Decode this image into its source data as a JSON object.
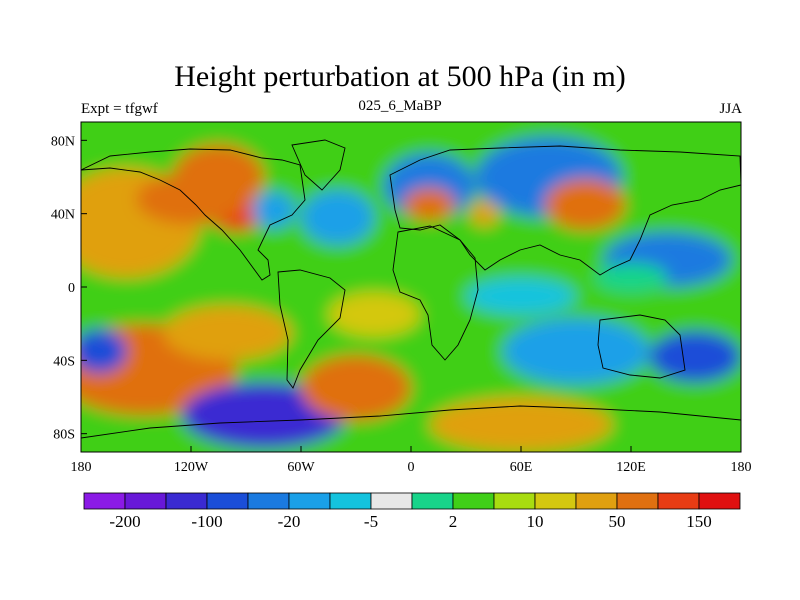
{
  "chart_data": {
    "type": "heatmap",
    "title": "Height perturbation at 500 hPa (in m)",
    "left_string": "Expt = tfgwf",
    "center_string": "025_6_MaBP",
    "right_string": "JJA",
    "x_range": [
      -180,
      180
    ],
    "y_range": [
      -90,
      90
    ],
    "x_ticks": [
      {
        "value": -180,
        "label": "180"
      },
      {
        "value": -120,
        "label": "120W"
      },
      {
        "value": -60,
        "label": "60W"
      },
      {
        "value": 0,
        "label": "0"
      },
      {
        "value": 60,
        "label": "60E"
      },
      {
        "value": 120,
        "label": "120E"
      },
      {
        "value": 180,
        "label": "180"
      }
    ],
    "y_ticks": [
      {
        "value": 80,
        "label": "80N"
      },
      {
        "value": 40,
        "label": "40N"
      },
      {
        "value": 0,
        "label": "0"
      },
      {
        "value": -40,
        "label": "40S"
      },
      {
        "value": -80,
        "label": "80S"
      }
    ],
    "colorbar": {
      "colors": [
        "#8b1ae6",
        "#6818d8",
        "#3a2ad2",
        "#1a4ed8",
        "#1a7ae0",
        "#1aa0e8",
        "#14c3de",
        "#e8e8e8",
        "#18d48a",
        "#40cf18",
        "#a8dc10",
        "#d4c810",
        "#e0a010",
        "#e07010",
        "#e83c14",
        "#e01010"
      ],
      "labels": [
        {
          "index": 1,
          "text": "-200"
        },
        {
          "index": 3,
          "text": "-100"
        },
        {
          "index": 5,
          "text": "-20"
        },
        {
          "index": 7,
          "text": "-5"
        },
        {
          "index": 9,
          "text": "2"
        },
        {
          "index": 11,
          "text": "10"
        },
        {
          "index": 13,
          "text": "50"
        },
        {
          "index": 15,
          "text": "150"
        }
      ]
    },
    "field_features": [
      {
        "lon": -155,
        "lat": 35,
        "value": 25,
        "rx": 40,
        "ry": 30
      },
      {
        "lon": -145,
        "lat": -45,
        "value": 60,
        "rx": 50,
        "ry": 25
      },
      {
        "lon": -100,
        "lat": -25,
        "value": 40,
        "rx": 35,
        "ry": 15
      },
      {
        "lon": -105,
        "lat": 60,
        "value": 70,
        "rx": 25,
        "ry": 18
      },
      {
        "lon": -95,
        "lat": 40,
        "value": 110,
        "rx": 15,
        "ry": 10
      },
      {
        "lon": -120,
        "lat": 48,
        "value": 50,
        "rx": 30,
        "ry": 14
      },
      {
        "lon": -75,
        "lat": 42,
        "value": -12,
        "rx": 12,
        "ry": 10
      },
      {
        "lon": -40,
        "lat": 38,
        "value": -20,
        "rx": 20,
        "ry": 15
      },
      {
        "lon": 10,
        "lat": 55,
        "value": -25,
        "rx": 25,
        "ry": 18
      },
      {
        "lon": 75,
        "lat": 60,
        "value": -40,
        "rx": 40,
        "ry": 22
      },
      {
        "lon": 10,
        "lat": 45,
        "value": 60,
        "rx": 14,
        "ry": 9
      },
      {
        "lon": 40,
        "lat": 40,
        "value": 40,
        "rx": 8,
        "ry": 7
      },
      {
        "lon": 95,
        "lat": 45,
        "value": 50,
        "rx": 22,
        "ry": 14
      },
      {
        "lon": 140,
        "lat": 15,
        "value": -25,
        "rx": 35,
        "ry": 15
      },
      {
        "lon": 60,
        "lat": -5,
        "value": -10,
        "rx": 30,
        "ry": 10
      },
      {
        "lon": 90,
        "lat": -35,
        "value": -20,
        "rx": 40,
        "ry": 18
      },
      {
        "lon": -80,
        "lat": -70,
        "value": -110,
        "rx": 45,
        "ry": 18
      },
      {
        "lon": -170,
        "lat": -35,
        "value": -60,
        "rx": 15,
        "ry": 12
      },
      {
        "lon": 155,
        "lat": -38,
        "value": -80,
        "rx": 25,
        "ry": 14
      },
      {
        "lon": 60,
        "lat": -75,
        "value": 45,
        "rx": 50,
        "ry": 15
      },
      {
        "lon": -30,
        "lat": -55,
        "value": 70,
        "rx": 30,
        "ry": 18
      },
      {
        "lon": -20,
        "lat": -15,
        "value": 18,
        "rx": 25,
        "ry": 12
      },
      {
        "lon": 120,
        "lat": 5,
        "value": 0,
        "rx": 20,
        "ry": 8
      }
    ],
    "field_base_value": 3
  }
}
